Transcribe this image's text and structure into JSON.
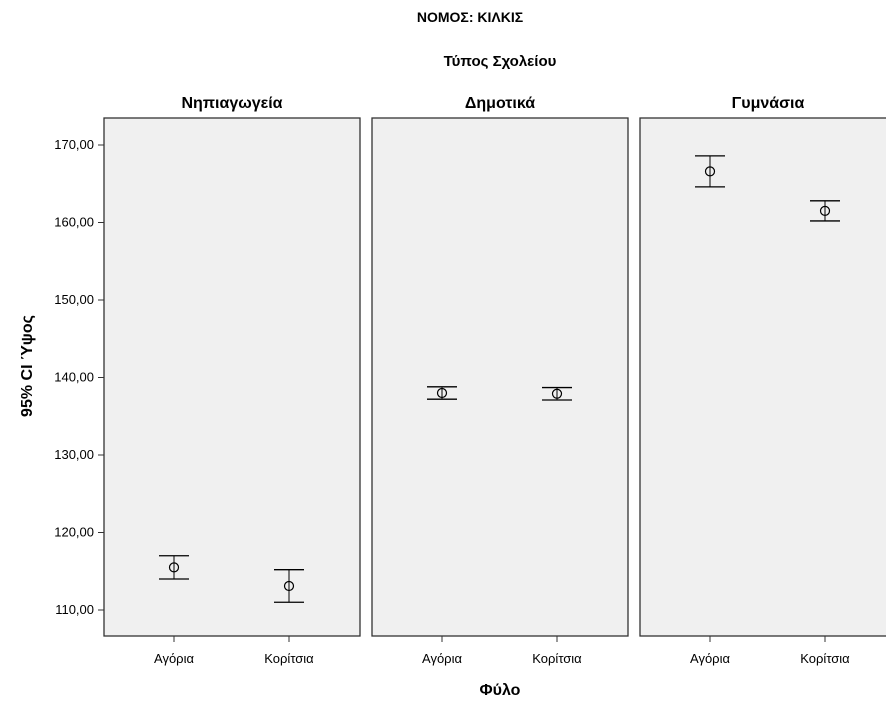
{
  "chart_data": {
    "type": "errorbar",
    "title": "ΝΟΜΟΣ: ΚΙΛΚΙΣ",
    "panel_group_label": "Τύπος Σχολείου",
    "xlabel": "Φύλο",
    "ylabel": "95% CI Ύψος",
    "categories": [
      "Αγόρια",
      "Κορίτσια"
    ],
    "ylim": [
      106,
      172
    ],
    "yticks": [
      110,
      120,
      130,
      140,
      150,
      160,
      170
    ],
    "ytick_labels": [
      "110,00",
      "120,00",
      "130,00",
      "140,00",
      "150,00",
      "160,00",
      "170,00"
    ],
    "grid": false,
    "colors": {
      "panel_bg": "#f0f0f0",
      "marker": "#000000",
      "errorbar": "#000000"
    },
    "panels": [
      {
        "name": "Νηπιαγωγεία",
        "points": [
          {
            "category": "Αγόρια",
            "mean": 115.5,
            "lower": 114.0,
            "upper": 117.0
          },
          {
            "category": "Κορίτσια",
            "mean": 113.1,
            "lower": 111.0,
            "upper": 115.2
          }
        ]
      },
      {
        "name": "Δημοτικά",
        "points": [
          {
            "category": "Αγόρια",
            "mean": 138.0,
            "lower": 137.2,
            "upper": 138.8
          },
          {
            "category": "Κορίτσια",
            "mean": 137.9,
            "lower": 137.1,
            "upper": 138.7
          }
        ]
      },
      {
        "name": "Γυμνάσια",
        "points": [
          {
            "category": "Αγόρια",
            "mean": 166.6,
            "lower": 164.6,
            "upper": 168.6
          },
          {
            "category": "Κορίτσια",
            "mean": 161.5,
            "lower": 160.2,
            "upper": 162.8
          }
        ]
      }
    ]
  }
}
